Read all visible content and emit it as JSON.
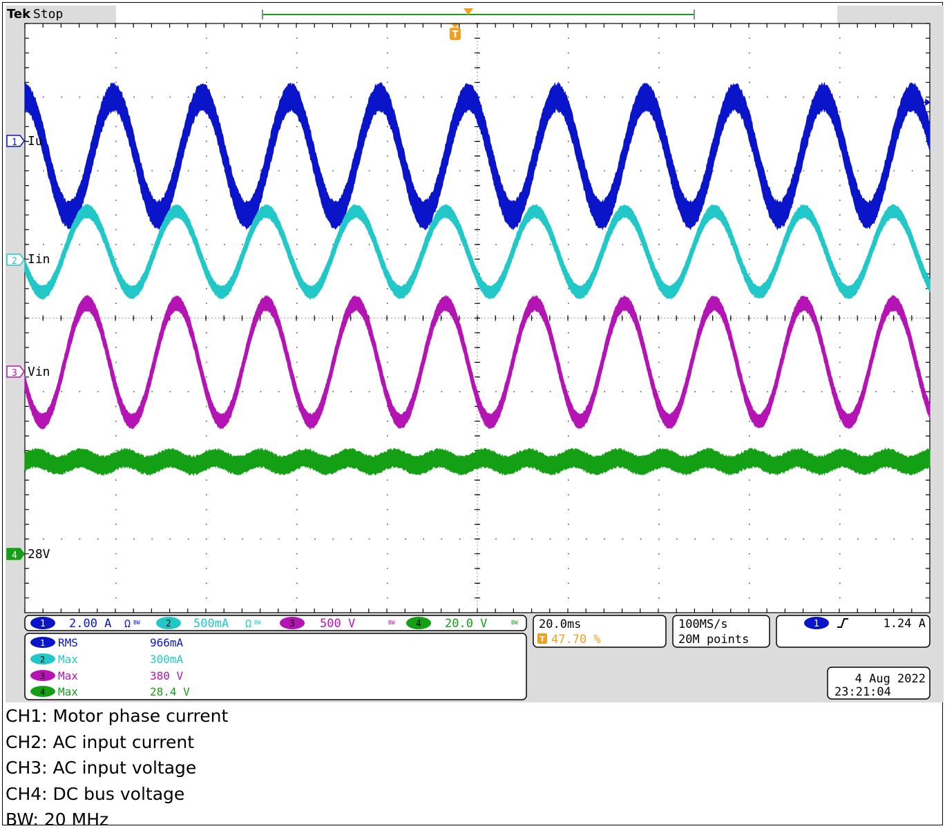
{
  "header": {
    "brand": "Tek",
    "status": "Stop"
  },
  "trigger_marker": "T",
  "channels": [
    {
      "id": "1",
      "label": "Iu",
      "color": "#0a14c8",
      "scale": "2.00 A",
      "coupling": "Ω",
      "bw_limit": "BW"
    },
    {
      "id": "2",
      "label": "Iin",
      "color": "#22c8c8",
      "scale": "500mA",
      "coupling": "Ω",
      "bw_limit": "BW"
    },
    {
      "id": "3",
      "label": "Vin",
      "color": "#b414b4",
      "scale": "500 V",
      "bw_limit": "BW"
    },
    {
      "id": "4",
      "label": "28V",
      "color": "#14a014",
      "scale": "20.0 V",
      "bw_limit": "BW"
    }
  ],
  "measurements": [
    {
      "channel": "1",
      "type": "RMS",
      "value": "966mA"
    },
    {
      "channel": "2",
      "type": "Max",
      "value": "300mA"
    },
    {
      "channel": "3",
      "type": "Max",
      "value": "380 V"
    },
    {
      "channel": "4",
      "type": "Max",
      "value": "28.4 V"
    }
  ],
  "timebase": {
    "scale": "20.0ms",
    "trigger_position": "47.70 %"
  },
  "acquisition": {
    "sample_rate": "100MS/s",
    "record_length": "20M points"
  },
  "trigger": {
    "source": "1",
    "slope": "rising",
    "level": "1.24 A"
  },
  "datetime": {
    "date": "4 Aug 2022",
    "time": "23:21:04"
  },
  "notes": [
    "CH1: Motor phase current",
    "CH2: AC input current",
    "CH3: AC input voltage",
    "CH4: DC bus voltage",
    "BW: 20 MHz"
  ],
  "colors": {
    "ch1": "#0a14c8",
    "ch2": "#22c8c8",
    "ch3": "#b414b4",
    "ch4": "#14a014",
    "trigger": "#f0a020",
    "grid": "#000000",
    "background": "#ffffff",
    "panel_bg": "#dcdcdc"
  },
  "chart_data": {
    "type": "line",
    "title": "",
    "xlabel": "",
    "ylabel": "",
    "grid": true,
    "x_divisions": 10,
    "y_divisions": 8,
    "time_per_div_ms": 20.0,
    "xlim_ms": [
      0,
      200
    ],
    "ylim_div": [
      -4,
      4
    ],
    "series": [
      {
        "name": "Iu",
        "channel": "1",
        "cycles": 10.2,
        "amplitude_div": 0.8,
        "offset_div": 2.2,
        "band_div": 0.15,
        "start_phase_deg": 90
      },
      {
        "name": "Iin",
        "channel": "2",
        "cycles": 10.1,
        "amplitude_div": 0.55,
        "offset_div": 0.9,
        "band_div": 0.07,
        "start_phase_deg": 200
      },
      {
        "name": "Vin",
        "channel": "3",
        "cycles": 10.1,
        "amplitude_div": 0.8,
        "offset_div": -0.6,
        "band_div": 0.08,
        "start_phase_deg": 200
      },
      {
        "name": "28V",
        "channel": "4",
        "cycles": 20.2,
        "amplitude_div": 0.05,
        "offset_div": -1.95,
        "band_div": 0.1,
        "start_phase_deg": 0
      }
    ]
  }
}
